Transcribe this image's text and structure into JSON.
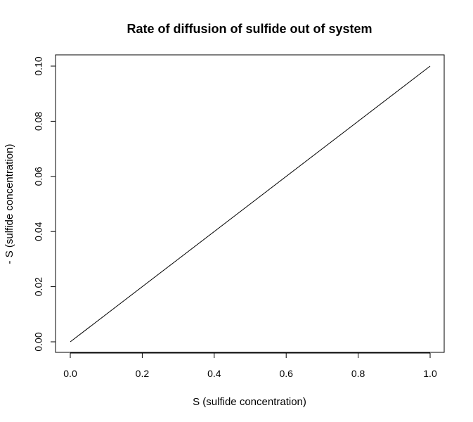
{
  "chart_data": {
    "type": "line",
    "title": "Rate of diffusion of sulfide out of system",
    "xlabel": "S (sulfide concentration)",
    "ylabel": "- S (sulfide concentration)",
    "xlim": [
      0.0,
      1.0
    ],
    "ylim": [
      0.0,
      0.1
    ],
    "x_ticks": [
      0.0,
      0.2,
      0.4,
      0.6,
      0.8,
      1.0
    ],
    "x_tick_labels": [
      "0.0",
      "0.2",
      "0.4",
      "0.6",
      "0.8",
      "1.0"
    ],
    "y_ticks": [
      0.0,
      0.02,
      0.04,
      0.06,
      0.08,
      0.1
    ],
    "y_tick_labels": [
      "0.00",
      "0.02",
      "0.04",
      "0.06",
      "0.08",
      "0.10"
    ],
    "grid": false,
    "series": [
      {
        "x": [
          0.0,
          1.0
        ],
        "values": [
          0.0,
          0.1
        ],
        "color": "#000000"
      }
    ]
  }
}
